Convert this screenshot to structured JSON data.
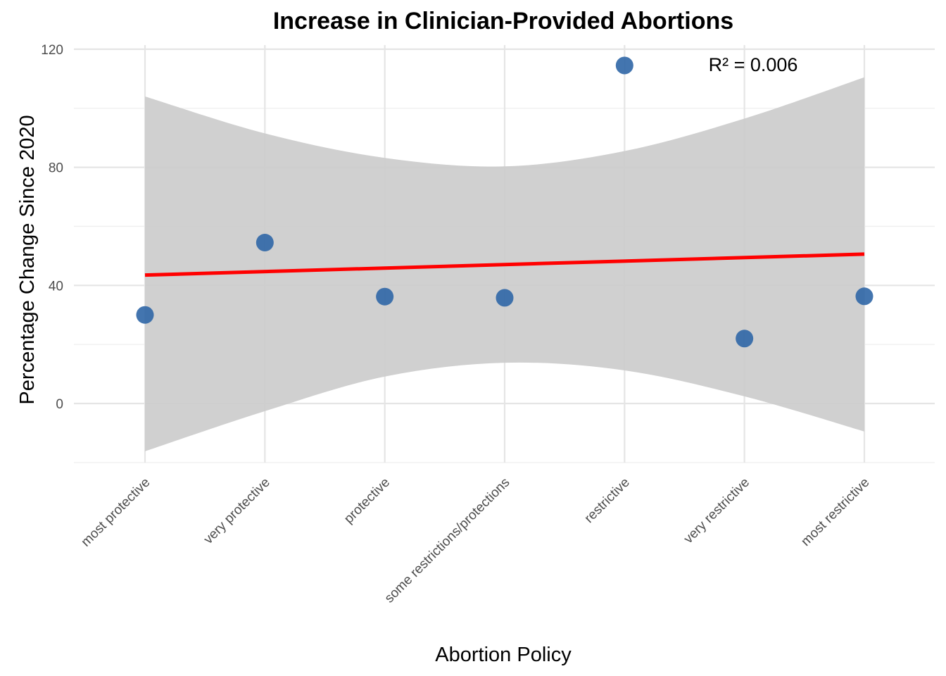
{
  "chart_data": {
    "type": "scatter",
    "title": "Increase in Clinician-Provided Abortions",
    "xlabel": "Abortion Policy",
    "ylabel": "Percentage Change Since 2020",
    "categories": [
      "most protective",
      "very protective",
      "protective",
      "some restrictions/protections",
      "restrictive",
      "very restrictive",
      "most restrictive"
    ],
    "values": [
      30,
      54.5,
      36.2,
      35.8,
      114.5,
      22,
      36.3
    ],
    "ylim": [
      -20,
      120
    ],
    "yticks": [
      0,
      40,
      80,
      120
    ],
    "grid": true,
    "trend": {
      "type": "linear",
      "start": 43.5,
      "end": 50.6,
      "color": "#ff0000"
    },
    "confidence_band": {
      "upper": [
        104,
        91.5,
        83.2,
        80.3,
        85.5,
        96.5,
        110.5
      ],
      "lower": [
        -16.2,
        -2.6,
        9.1,
        13.8,
        11.2,
        2.4,
        -9.5
      ],
      "color": "#cccccc"
    },
    "point_color": "#2f66a6",
    "annotation": "R² = 0.006"
  }
}
